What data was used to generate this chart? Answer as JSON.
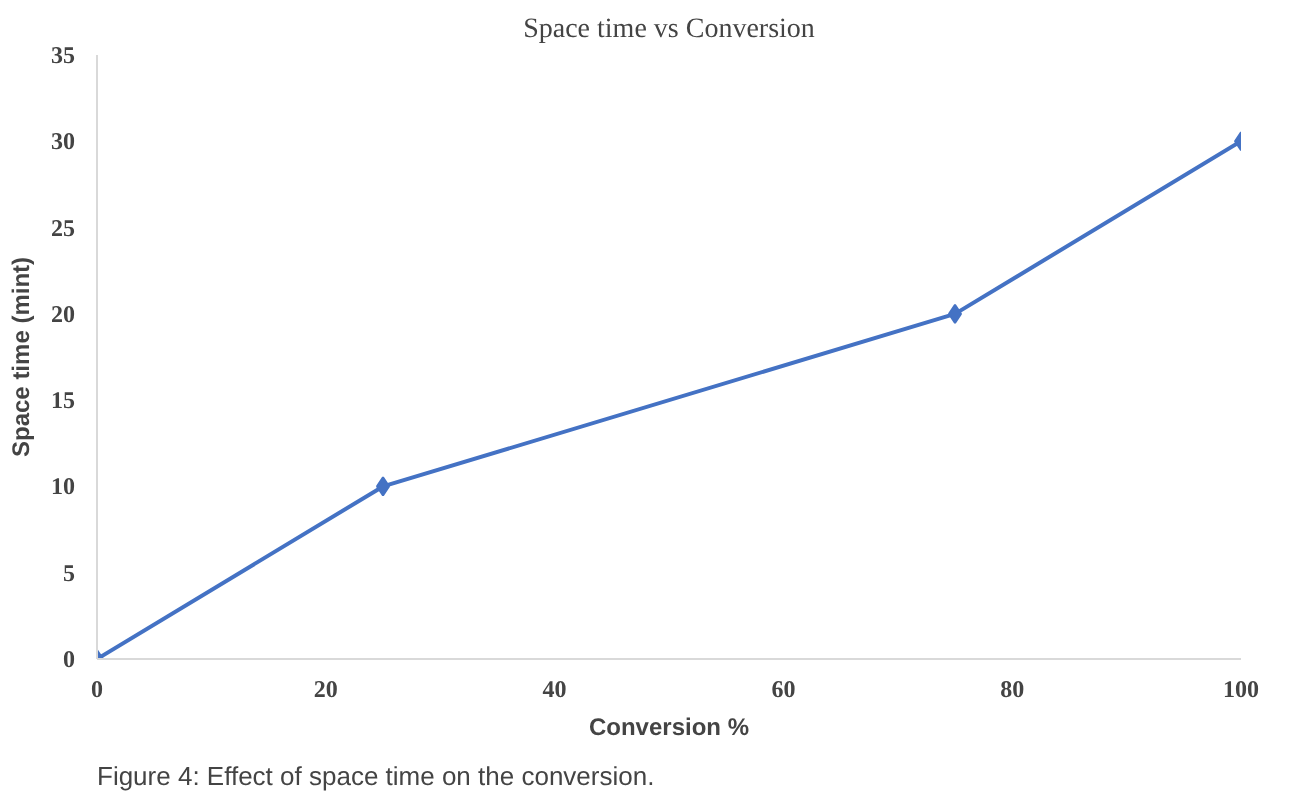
{
  "chart_data": {
    "type": "line",
    "title": "Space time vs Conversion",
    "xlabel": "Conversion %",
    "ylabel": "Space time (mint)",
    "x": [
      0,
      25,
      75,
      100
    ],
    "series": [
      {
        "color": "#4472c4",
        "values": [
          0,
          10,
          20,
          30
        ]
      }
    ],
    "xlim": [
      0,
      100
    ],
    "xticks": [
      0,
      20,
      40,
      60,
      80,
      100
    ],
    "ylim": [
      0,
      35
    ],
    "yticks": [
      0,
      5,
      10,
      15,
      20,
      25,
      30,
      35
    ],
    "grid": false,
    "marker": "diamond",
    "line_style": "solid",
    "annotations": [
      "Figure 4: Effect of space time on the conversion."
    ]
  }
}
